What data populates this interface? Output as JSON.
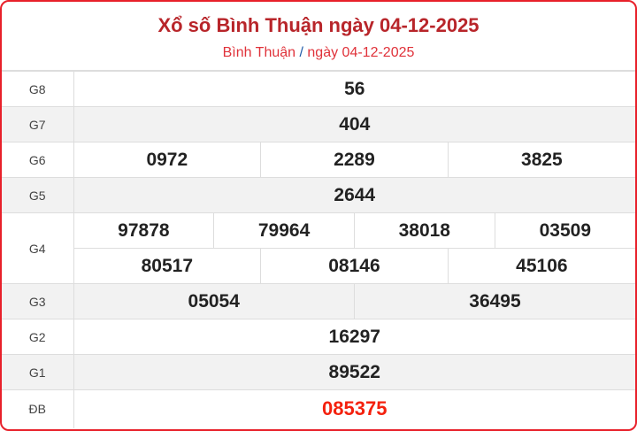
{
  "header": {
    "title": "Xổ số Bình Thuận ngày 04-12-2025",
    "breadcrumb": {
      "province": "Bình Thuận",
      "separator": "/",
      "date": "ngày 04-12-2025"
    }
  },
  "colors": {
    "border": "#e8202a",
    "title": "#b8252a",
    "special": "#f4210e"
  },
  "prizes": {
    "g8": {
      "label": "G8",
      "values": [
        "56"
      ]
    },
    "g7": {
      "label": "G7",
      "values": [
        "404"
      ]
    },
    "g6": {
      "label": "G6",
      "values": [
        "0972",
        "2289",
        "3825"
      ]
    },
    "g5": {
      "label": "G5",
      "values": [
        "2644"
      ]
    },
    "g4": {
      "label": "G4",
      "values": [
        "97878",
        "79964",
        "38018",
        "03509",
        "80517",
        "08146",
        "45106"
      ]
    },
    "g3": {
      "label": "G3",
      "values": [
        "05054",
        "36495"
      ]
    },
    "g2": {
      "label": "G2",
      "values": [
        "16297"
      ]
    },
    "g1": {
      "label": "G1",
      "values": [
        "89522"
      ]
    },
    "db": {
      "label": "ĐB",
      "values": [
        "085375"
      ]
    }
  }
}
